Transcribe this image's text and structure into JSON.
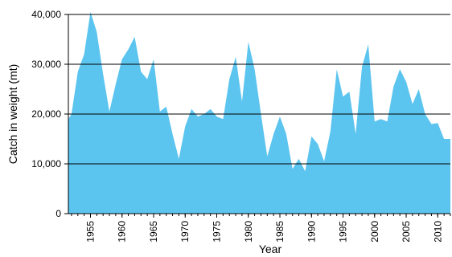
{
  "chart_data": {
    "type": "area",
    "title": "",
    "xlabel": "Year",
    "ylabel": "Catch in weight (mt)",
    "xlim": [
      1951.5,
      2012
    ],
    "ylim": [
      0,
      40000
    ],
    "y_ticks": [
      0,
      10000,
      20000,
      30000,
      40000
    ],
    "y_tick_labels": [
      "0",
      "10,000",
      "20,000",
      "30,000",
      "40,000"
    ],
    "x_ticks": [
      1955,
      1960,
      1965,
      1970,
      1975,
      1980,
      1985,
      1990,
      1995,
      2000,
      2005,
      2010
    ],
    "x_tick_labels": [
      "1955",
      "1960",
      "1965",
      "1970",
      "1975",
      "1980",
      "1985",
      "1990",
      "1995",
      "2000",
      "2005",
      "2010"
    ],
    "grid": "horizontal",
    "fill_color": "#5bc4ef",
    "series": [
      {
        "x": [
          1951.5,
          1952,
          1953,
          1954,
          1955,
          1956,
          1957,
          1958,
          1959,
          1960,
          1961,
          1962,
          1963,
          1964,
          1965,
          1966,
          1967,
          1968,
          1969,
          1970,
          1971,
          1972,
          1973,
          1974,
          1975,
          1976,
          1977,
          1978,
          1979,
          1980,
          1981,
          1982,
          1983,
          1984,
          1985,
          1986,
          1987,
          1988,
          1989,
          1990,
          1991,
          1992,
          1993,
          1994,
          1995,
          1996,
          1997,
          1998,
          1999,
          2000,
          2001,
          2002,
          2003,
          2004,
          2005,
          2006,
          2007,
          2008,
          2009,
          2010,
          2011,
          2012
        ],
        "values": [
          19000,
          20000,
          28500,
          32000,
          40500,
          36500,
          28000,
          20500,
          26000,
          31000,
          33000,
          35500,
          28500,
          27000,
          31000,
          20500,
          21500,
          16000,
          11000,
          17500,
          21000,
          19500,
          20000,
          21000,
          19500,
          19000,
          27000,
          31500,
          22500,
          34500,
          29000,
          20000,
          11500,
          16000,
          19500,
          16000,
          9000,
          11000,
          8500,
          15500,
          14000,
          10500,
          16500,
          29000,
          23500,
          24500,
          16000,
          29500,
          34000,
          18500,
          19000,
          18500,
          25500,
          29000,
          26500,
          22000,
          25000,
          20000,
          18000,
          18200,
          15000,
          15000
        ]
      }
    ]
  }
}
